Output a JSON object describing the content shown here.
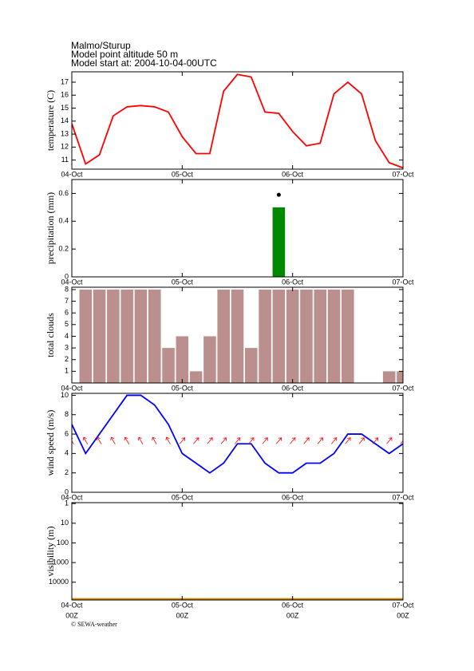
{
  "header": {
    "station": "Malmo/Sturup",
    "altitude": "Model point altitude  50 m",
    "model_start": "Model start at: 2004-10-04-00UTC"
  },
  "footer": "© SEWA-weather",
  "chart_data": [
    {
      "type": "line",
      "y_label": "temperature (C)",
      "color": "#ff0000",
      "categories": [
        "04-Oct",
        null,
        null,
        null,
        null,
        null,
        null,
        null,
        "05-Oct",
        null,
        null,
        null,
        null,
        null,
        null,
        null,
        "06-Oct",
        null,
        null,
        null,
        null,
        null,
        null,
        null,
        "07-Oct"
      ],
      "values": [
        13.8,
        10.7,
        11.4,
        14.4,
        15.1,
        15.2,
        15.1,
        14.7,
        12.8,
        11.5,
        11.5,
        16.3,
        17.6,
        17.4,
        14.7,
        14.6,
        13.2,
        12.1,
        12.3,
        16.1,
        17.0,
        16.1,
        12.5,
        10.8,
        10.4
      ],
      "ylim": [
        10.3,
        17.8
      ],
      "yticks": [
        11,
        12,
        13,
        14,
        15,
        16,
        17
      ],
      "grid": false
    },
    {
      "type": "bar",
      "y_label": "precipitation (mm)",
      "color": "#008800",
      "dot_color": "#000000",
      "categories": [
        "04-Oct",
        null,
        null,
        null,
        null,
        null,
        null,
        null,
        "05-Oct",
        null,
        null,
        null,
        null,
        null,
        null,
        null,
        "06-Oct",
        null,
        null,
        null,
        null,
        null,
        null,
        null,
        "07-Oct"
      ],
      "values": [
        0,
        0,
        0,
        0,
        0,
        0,
        0,
        0,
        0,
        0,
        0,
        0,
        0,
        0,
        0,
        0.5,
        0,
        0,
        0,
        0,
        0,
        0,
        0,
        0,
        0
      ],
      "max_values": [
        null,
        null,
        null,
        null,
        null,
        null,
        null,
        null,
        null,
        null,
        null,
        null,
        null,
        null,
        null,
        0.59,
        null,
        null,
        null,
        null,
        null,
        null,
        null,
        null,
        null
      ],
      "ylim": [
        0,
        0.7
      ],
      "yticks": [
        0,
        0.2,
        0.4,
        0.6
      ],
      "grid": false
    },
    {
      "type": "bar",
      "y_label": "total clouds",
      "color": "#bc8f8f",
      "categories": [
        "04-Oct",
        null,
        null,
        null,
        null,
        null,
        null,
        null,
        "05-Oct",
        null,
        null,
        null,
        null,
        null,
        null,
        null,
        "06-Oct",
        null,
        null,
        null,
        null,
        null,
        null,
        null,
        "07-Oct"
      ],
      "values": [
        null,
        8,
        8,
        8,
        8,
        8,
        8,
        3,
        4,
        1,
        4,
        8,
        8,
        3,
        8,
        8,
        8,
        8,
        8,
        8,
        8,
        0,
        0,
        1,
        1
      ],
      "ylim": [
        0,
        8.2
      ],
      "yticks": [
        1,
        2,
        3,
        4,
        5,
        6,
        7,
        8
      ],
      "grid": false
    },
    {
      "type": "line",
      "y_label": "wind speed (m/s)",
      "color": "#0000ff",
      "arrow_color": "#ff0000",
      "categories": [
        "04-Oct",
        null,
        null,
        null,
        null,
        null,
        null,
        null,
        "05-Oct",
        null,
        null,
        null,
        null,
        null,
        null,
        null,
        "06-Oct",
        null,
        null,
        null,
        null,
        null,
        null,
        null,
        "07-Oct"
      ],
      "values": [
        7,
        4,
        6,
        8,
        10,
        10,
        9,
        7,
        4,
        3,
        2,
        3,
        5,
        5,
        3,
        2,
        2,
        3,
        3,
        4,
        6,
        6,
        5,
        4,
        5
      ],
      "directions": [
        -30,
        -30,
        -30,
        -30,
        -30,
        -30,
        -30,
        -30,
        40,
        40,
        40,
        40,
        40,
        40,
        40,
        40,
        40,
        40,
        40,
        40,
        40,
        40,
        40,
        40,
        40
      ],
      "ylim": [
        0,
        10.2
      ],
      "yticks": [
        0,
        2,
        4,
        6,
        8,
        10
      ],
      "grid": false
    },
    {
      "type": "line",
      "y_label": "visibility (m)",
      "color": "#cc8800",
      "log_y": true,
      "invert_y": true,
      "categories": [
        "04-Oct",
        null,
        null,
        null,
        null,
        null,
        null,
        null,
        "05-Oct",
        null,
        null,
        null,
        null,
        null,
        null,
        null,
        "06-Oct",
        null,
        null,
        null,
        null,
        null,
        null,
        null,
        "07-Oct"
      ],
      "sublabels": [
        "00Z",
        null,
        null,
        null,
        null,
        null,
        null,
        null,
        "00Z",
        null,
        null,
        null,
        null,
        null,
        null,
        null,
        "00Z",
        null,
        null,
        null,
        null,
        null,
        null,
        null,
        "00Z"
      ],
      "values": [
        70000,
        70000,
        70000,
        70000,
        70000,
        70000,
        70000,
        70000,
        70000,
        70000,
        70000,
        70000,
        70000,
        70000,
        70000,
        70000,
        70000,
        70000,
        70000,
        70000,
        70000,
        70000,
        70000,
        70000,
        70000
      ],
      "ylim": [
        0.9,
        80000
      ],
      "yticks": [
        1,
        10,
        100,
        1000,
        10000
      ],
      "grid": false
    }
  ]
}
